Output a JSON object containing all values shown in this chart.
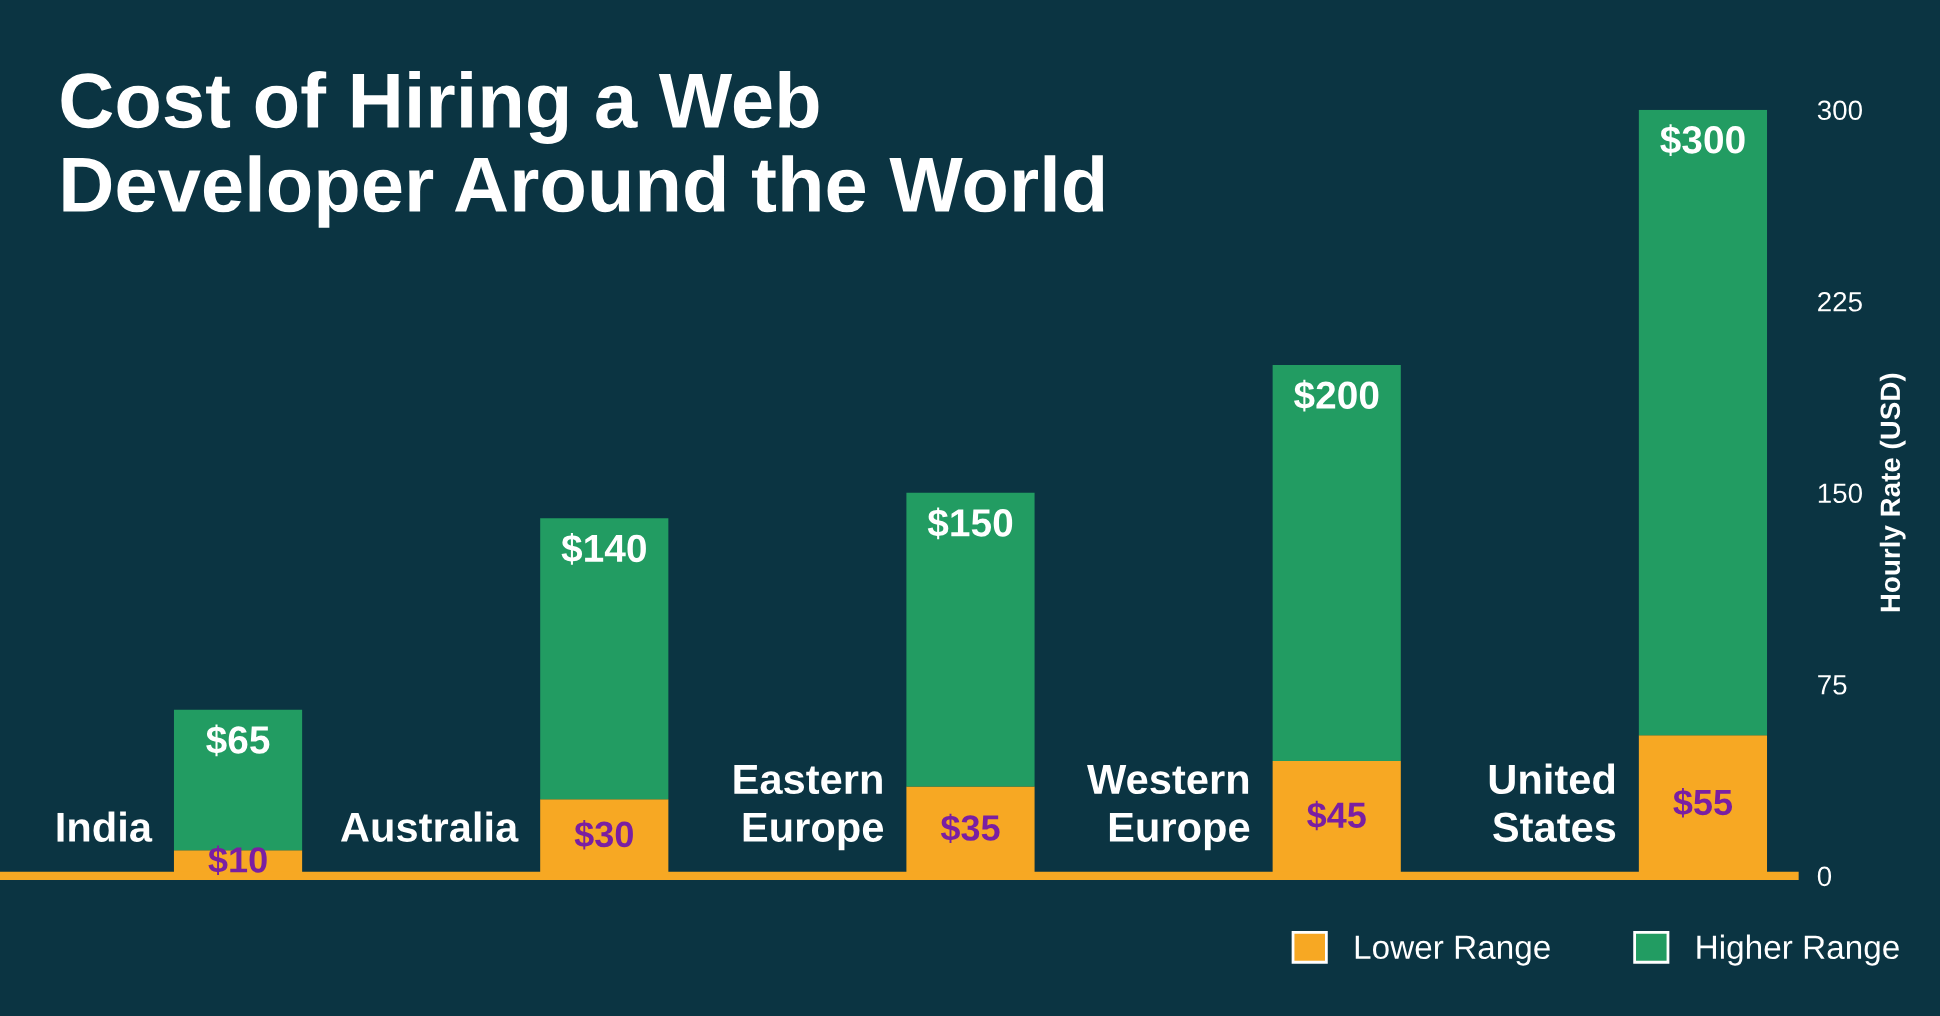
{
  "chart_data": {
    "type": "bar",
    "title": "Cost of Hiring a Web\nDeveloper Around the World",
    "ylabel": "Hourly Rate (USD)",
    "categories": [
      "India",
      "Australia",
      "Eastern\nEurope",
      "Western\nEurope",
      "United\nStates"
    ],
    "stacked": true,
    "series": [
      {
        "name": "Lower Range",
        "color": "#f7a823",
        "values": [
          10,
          30,
          35,
          45,
          55
        ],
        "value_labels": [
          "$10",
          "$30",
          "$35",
          "$45",
          "$55"
        ]
      },
      {
        "name": "Higher Range",
        "color": "#229c62",
        "values": [
          55,
          110,
          115,
          155,
          245
        ]
      }
    ],
    "totals": [
      "$65",
      "$140",
      "$150",
      "$200",
      "$300"
    ],
    "ylim": [
      0,
      300
    ],
    "yticks": [
      0,
      75,
      150,
      225,
      300
    ],
    "grid": false,
    "legend": "bottom right"
  }
}
